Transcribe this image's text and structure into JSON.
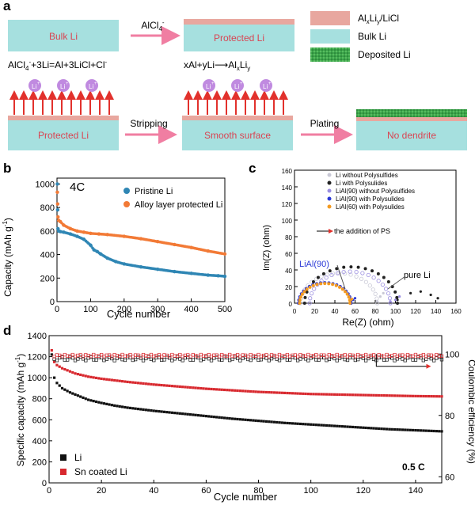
{
  "panel_a": {
    "label": "a",
    "boxes": {
      "bulk_li": "Bulk Li",
      "protected_li_top": "Protected Li",
      "protected_li_bottom": "Protected Li",
      "smooth_surface": "Smooth surface",
      "no_dendrite": "No dendrite"
    },
    "arrow_top_label": "AlCl",
    "arrow_top_label_sup": "4",
    "arrow_top_label_sup2": "-",
    "reaction_1": {
      "text1": "AlCl",
      "sub1": "4",
      "sup1": "-",
      "text2": "+3Li=Al+3LiCl+Cl",
      "sup2": "-"
    },
    "reaction_2": {
      "text1": "xAl+yLi",
      "arrow": "⟶",
      "text2": "Al",
      "sub2": "x",
      "text3": "Li",
      "sub3": "y"
    },
    "stripping_label": "Stripping",
    "plating_label": "Plating",
    "li_ion_label": "Li",
    "li_ion_sup": "+",
    "legend": [
      {
        "label_main": "Al",
        "sub1": "x",
        "mid": "Li",
        "sub2": "y",
        "rest": "/LiCl",
        "color": "#e8a79f"
      },
      {
        "label_main": "Bulk Li",
        "color": "#a6e0df"
      },
      {
        "label_main": "Deposited Li",
        "color": "#3aa64a"
      }
    ],
    "colors": {
      "bulk": "#a6e0df",
      "protect": "#e8a79f",
      "arrow": "#f07ea2",
      "ion": "#c08ae0",
      "deposit": "#3aa64a",
      "redline": "#e2312c",
      "text": "#d94452"
    }
  },
  "panel_b": {
    "label": "b",
    "rate_label": "4C",
    "chart_data": {
      "type": "scatter",
      "xlabel": "Cycle number",
      "ylabel": "Capacity (mAh g",
      "ylabel_sup": "-1",
      "ylabel_end": ")",
      "xlim": [
        0,
        500
      ],
      "ylim": [
        0,
        1050
      ],
      "xticks": [
        0,
        100,
        200,
        300,
        400,
        500
      ],
      "yticks": [
        0,
        200,
        400,
        600,
        800,
        1000
      ],
      "series": [
        {
          "name": "Pristine Li",
          "color": "#2f86b4",
          "x": [
            1,
            2,
            3,
            5,
            10,
            20,
            40,
            60,
            80,
            100,
            110,
            120,
            130,
            150,
            175,
            200,
            250,
            300,
            350,
            400,
            450,
            480,
            500
          ],
          "y": [
            1000,
            780,
            620,
            600,
            595,
            590,
            575,
            555,
            530,
            480,
            440,
            425,
            405,
            370,
            340,
            320,
            295,
            275,
            255,
            240,
            225,
            220,
            215
          ]
        },
        {
          "name": "Alloy layer protected Li",
          "color": "#f27a36",
          "x": [
            1,
            2,
            3,
            5,
            10,
            20,
            40,
            60,
            80,
            100,
            125,
            150,
            200,
            250,
            300,
            350,
            400,
            450,
            500
          ],
          "y": [
            930,
            830,
            720,
            690,
            680,
            650,
            620,
            600,
            590,
            580,
            575,
            570,
            555,
            535,
            510,
            485,
            460,
            430,
            405
          ]
        }
      ]
    }
  },
  "panel_c": {
    "label": "c",
    "chart_data": {
      "type": "scatter",
      "xlabel": "Re(Z) (ohm)",
      "ylabel": "Im(Z) (ohm)",
      "xlim": [
        0,
        160
      ],
      "ylim": [
        0,
        160
      ],
      "xticks": [
        0,
        20,
        40,
        60,
        80,
        100,
        120,
        140,
        160
      ],
      "yticks": [
        0,
        20,
        40,
        60,
        80,
        100,
        120,
        140,
        160
      ],
      "series": [
        {
          "name": "Li without Polysulfides",
          "color": "#c9c9d6",
          "cx": 44,
          "r": 38,
          "x0": 6,
          "tail": [
            [
              82,
              2
            ],
            [
              85,
              8
            ],
            [
              88,
              12
            ]
          ]
        },
        {
          "name": "Li with Polysulides",
          "color": "#222222",
          "cx": 56,
          "r": 46,
          "x0": 10,
          "tail": [
            [
              102,
              4
            ],
            [
              115,
              12
            ],
            [
              125,
              14
            ],
            [
              135,
              10
            ],
            [
              142,
              6
            ]
          ]
        },
        {
          "name": "LiAl(90) without Polysulfides",
          "color": "#9b8ee0",
          "cx": 55,
          "r": 40,
          "x0": 15,
          "tail": [
            [
              95,
              2
            ],
            [
              100,
              4
            ],
            [
              104,
              8
            ]
          ]
        },
        {
          "name": "LiAl(90) with Polysulides",
          "color": "#2b39d6",
          "cx": 30,
          "r": 26,
          "x0": 4,
          "tail": [
            [
              56,
              2
            ],
            [
              58,
              4
            ],
            [
              60,
              6
            ]
          ]
        },
        {
          "name": "LiAl(60) with Polysulides",
          "color": "#f39a21",
          "cx": 30,
          "r": 25,
          "x0": 5,
          "tail": [
            [
              55,
              2
            ],
            [
              56,
              4
            ],
            [
              57,
              5
            ]
          ]
        }
      ]
    },
    "annotation": "the addition of PS",
    "label_lial": "LiAl(90)",
    "label_pure": "pure Li"
  },
  "panel_d": {
    "label": "d",
    "rate_label": "0.5 C",
    "chart_data": {
      "type": "scatter",
      "xlabel": "Cycle number",
      "ylabel": "Specific capacity (mAh g",
      "ylabel_sup": "-1",
      "ylabel_end": ")",
      "y2label": "Coulombic efficiency (%)",
      "xlim": [
        0,
        150
      ],
      "ylim": [
        0,
        1400
      ],
      "y2lim": [
        58,
        106
      ],
      "xticks": [
        0,
        20,
        40,
        60,
        80,
        100,
        120,
        140
      ],
      "yticks": [
        0,
        200,
        400,
        600,
        800,
        1000,
        1200,
        1400
      ],
      "y2ticks": [
        60,
        80,
        100
      ],
      "series": [
        {
          "name": "Li",
          "color": "#111111",
          "x": [
            1,
            2,
            3,
            5,
            8,
            10,
            15,
            20,
            25,
            30,
            40,
            50,
            60,
            70,
            80,
            90,
            100,
            110,
            120,
            130,
            140,
            150
          ],
          "y": [
            1220,
            1000,
            950,
            900,
            860,
            840,
            790,
            760,
            735,
            715,
            685,
            660,
            635,
            610,
            590,
            570,
            555,
            540,
            525,
            510,
            500,
            490
          ]
        },
        {
          "name": "Sn coated Li",
          "color": "#d8282e",
          "x": [
            1,
            2,
            3,
            5,
            8,
            10,
            15,
            20,
            30,
            40,
            50,
            60,
            70,
            80,
            90,
            100,
            110,
            120,
            130,
            140,
            150
          ],
          "y": [
            1260,
            1150,
            1120,
            1090,
            1060,
            1040,
            1010,
            990,
            960,
            935,
            915,
            895,
            880,
            865,
            855,
            845,
            840,
            835,
            830,
            825,
            822
          ]
        },
        {
          "name": "Li CE",
          "color": "#111111",
          "axis": "y2",
          "value": 98.5
        },
        {
          "name": "Sn coated Li CE",
          "color": "#d8282e",
          "axis": "y2",
          "value": 99.5
        }
      ]
    }
  }
}
